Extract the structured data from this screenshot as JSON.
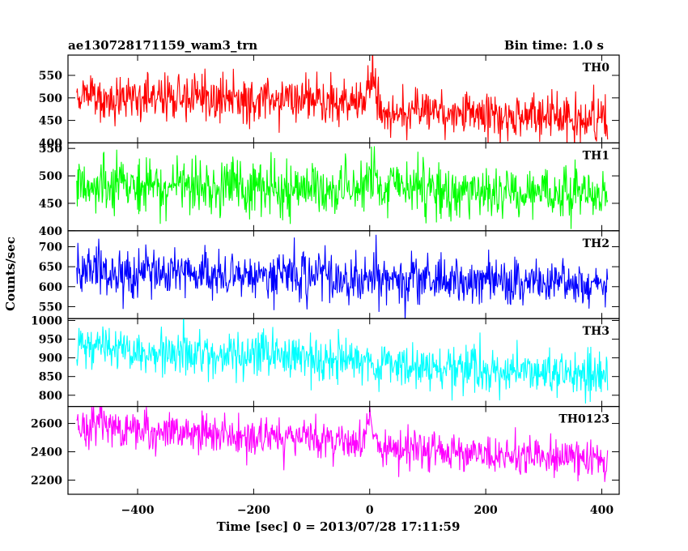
{
  "chart_data": {
    "type": "line",
    "title": "ae130728171159_wam3_trn",
    "subtitle": "Bin time: 1.0 s",
    "xlabel": "Time [sec] 0 = 2013/07/28 17:11:59",
    "ylabel": "Counts/sec",
    "xlim": [
      -520,
      430
    ],
    "x_ticks": [
      -400,
      -200,
      0,
      200,
      400
    ],
    "x_tick_labels": [
      "−400",
      "−200",
      "0",
      "200",
      "400"
    ],
    "x_data_range": [
      -505,
      410
    ],
    "bin_time_s": 1.0,
    "grid": false,
    "panels": [
      {
        "name": "TH0",
        "color": "#ff0000",
        "ylim": [
          400,
          595
        ],
        "y_ticks": [
          400,
          450,
          500,
          550
        ],
        "y_tick_labels": [
          "400",
          "450",
          "500",
          "550"
        ],
        "trend": [
          [
            -505,
            505
          ],
          [
            -100,
            495
          ],
          [
            -10,
            490
          ],
          [
            0,
            545
          ],
          [
            8,
            540
          ],
          [
            15,
            470
          ],
          [
            410,
            455
          ]
        ],
        "noise_sd": 26
      },
      {
        "name": "TH1",
        "color": "#00ff00",
        "ylim": [
          400,
          560
        ],
        "y_ticks": [
          400,
          450,
          500,
          550
        ],
        "y_tick_labels": [
          "400",
          "450",
          "500",
          "550"
        ],
        "trend": [
          [
            -505,
            482
          ],
          [
            -10,
            478
          ],
          [
            0,
            510
          ],
          [
            8,
            500
          ],
          [
            15,
            478
          ],
          [
            410,
            466
          ]
        ],
        "noise_sd": 24
      },
      {
        "name": "TH2",
        "color": "#0000ff",
        "ylim": [
          520,
          740
        ],
        "y_ticks": [
          550,
          600,
          650,
          700
        ],
        "y_tick_labels": [
          "550",
          "600",
          "650",
          "700"
        ],
        "trend": [
          [
            -505,
            635
          ],
          [
            -200,
            630
          ],
          [
            0,
            620
          ],
          [
            410,
            605
          ]
        ],
        "noise_sd": 28
      },
      {
        "name": "TH3",
        "color": "#00ffff",
        "ylim": [
          770,
          1005
        ],
        "y_ticks": [
          800,
          850,
          900,
          950,
          1000
        ],
        "y_tick_labels": [
          "800",
          "850",
          "900",
          "950",
          "1000"
        ],
        "trend": [
          [
            -505,
            930
          ],
          [
            -200,
            905
          ],
          [
            0,
            890
          ],
          [
            200,
            870
          ],
          [
            410,
            845
          ]
        ],
        "noise_sd": 30
      },
      {
        "name": "TH0123",
        "color": "#ff00ff",
        "ylim": [
          2100,
          2720
        ],
        "y_ticks": [
          2200,
          2400,
          2600
        ],
        "y_tick_labels": [
          "2200",
          "2400",
          "2600"
        ],
        "trend": [
          [
            -505,
            2580
          ],
          [
            -10,
            2470
          ],
          [
            0,
            2610
          ],
          [
            8,
            2560
          ],
          [
            15,
            2430
          ],
          [
            410,
            2340
          ]
        ],
        "noise_sd": 70
      }
    ]
  }
}
